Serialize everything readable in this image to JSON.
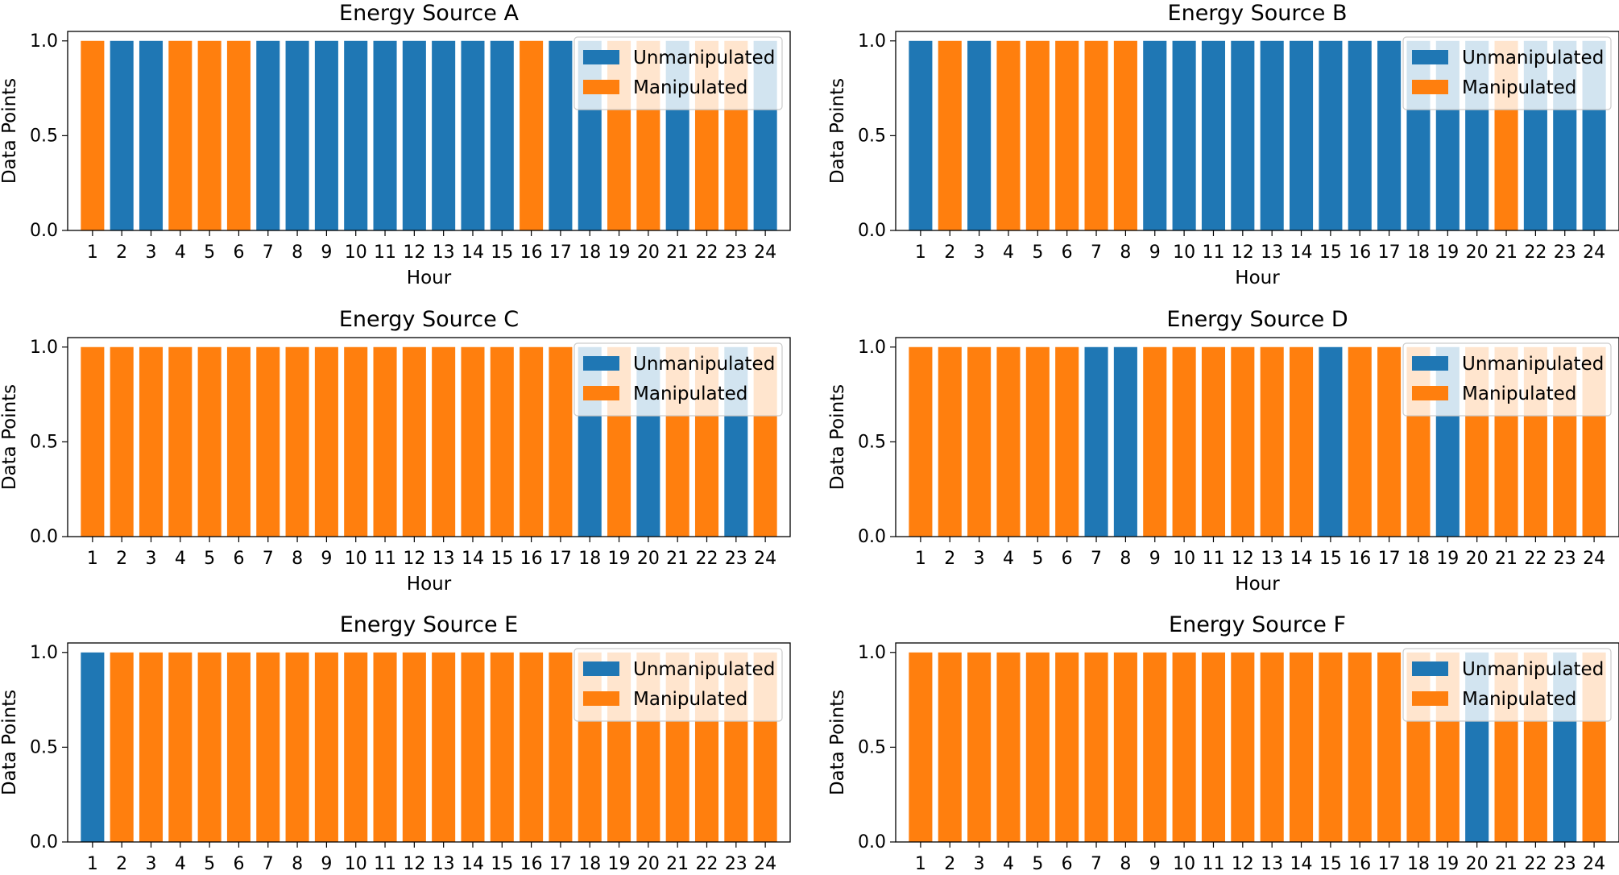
{
  "figure": {
    "colors": {
      "unmanipulated": "#1f77b4",
      "manipulated": "#ff7f0e"
    }
  },
  "chart_data": [
    {
      "type": "bar",
      "title": "Energy Source A",
      "xlabel": "Hour",
      "ylabel": "Data Points",
      "ylim": [
        0,
        1.05
      ],
      "yticks": [
        "0.0",
        "0.5",
        "1.0"
      ],
      "categories": [
        "1",
        "2",
        "3",
        "4",
        "5",
        "6",
        "7",
        "8",
        "9",
        "10",
        "11",
        "12",
        "13",
        "14",
        "15",
        "16",
        "17",
        "18",
        "19",
        "20",
        "21",
        "22",
        "23",
        "24"
      ],
      "values": [
        1,
        1,
        1,
        1,
        1,
        1,
        1,
        1,
        1,
        1,
        1,
        1,
        1,
        1,
        1,
        1,
        1,
        1,
        1,
        1,
        1,
        1,
        1,
        1
      ],
      "manipulated": [
        1,
        0,
        0,
        1,
        1,
        1,
        0,
        0,
        0,
        0,
        0,
        0,
        0,
        0,
        0,
        1,
        0,
        0,
        1,
        1,
        0,
        1,
        1,
        0
      ],
      "legend": {
        "position": "upper right",
        "entries": [
          "Unmanipulated",
          "Manipulated"
        ]
      }
    },
    {
      "type": "bar",
      "title": "Energy Source B",
      "xlabel": "Hour",
      "ylabel": "Data Points",
      "ylim": [
        0,
        1.05
      ],
      "yticks": [
        "0.0",
        "0.5",
        "1.0"
      ],
      "categories": [
        "1",
        "2",
        "3",
        "4",
        "5",
        "6",
        "7",
        "8",
        "9",
        "10",
        "11",
        "12",
        "13",
        "14",
        "15",
        "16",
        "17",
        "18",
        "19",
        "20",
        "21",
        "22",
        "23",
        "24"
      ],
      "values": [
        1,
        1,
        1,
        1,
        1,
        1,
        1,
        1,
        1,
        1,
        1,
        1,
        1,
        1,
        1,
        1,
        1,
        1,
        1,
        1,
        1,
        1,
        1,
        1
      ],
      "manipulated": [
        0,
        1,
        0,
        1,
        1,
        1,
        1,
        1,
        0,
        0,
        0,
        0,
        0,
        0,
        0,
        0,
        0,
        0,
        0,
        0,
        1,
        0,
        0,
        0
      ],
      "legend": {
        "position": "upper right",
        "entries": [
          "Unmanipulated",
          "Manipulated"
        ]
      }
    },
    {
      "type": "bar",
      "title": "Energy Source C",
      "xlabel": "Hour",
      "ylabel": "Data Points",
      "ylim": [
        0,
        1.05
      ],
      "yticks": [
        "0.0",
        "0.5",
        "1.0"
      ],
      "categories": [
        "1",
        "2",
        "3",
        "4",
        "5",
        "6",
        "7",
        "8",
        "9",
        "10",
        "11",
        "12",
        "13",
        "14",
        "15",
        "16",
        "17",
        "18",
        "19",
        "20",
        "21",
        "22",
        "23",
        "24"
      ],
      "values": [
        1,
        1,
        1,
        1,
        1,
        1,
        1,
        1,
        1,
        1,
        1,
        1,
        1,
        1,
        1,
        1,
        1,
        1,
        1,
        1,
        1,
        1,
        1,
        1
      ],
      "manipulated": [
        1,
        1,
        1,
        1,
        1,
        1,
        1,
        1,
        1,
        1,
        1,
        1,
        1,
        1,
        1,
        1,
        1,
        0,
        1,
        0,
        1,
        1,
        0,
        1
      ],
      "legend": {
        "position": "upper right",
        "entries": [
          "Unmanipulated",
          "Manipulated"
        ]
      }
    },
    {
      "type": "bar",
      "title": "Energy Source D",
      "xlabel": "Hour",
      "ylabel": "Data Points",
      "ylim": [
        0,
        1.05
      ],
      "yticks": [
        "0.0",
        "0.5",
        "1.0"
      ],
      "categories": [
        "1",
        "2",
        "3",
        "4",
        "5",
        "6",
        "7",
        "8",
        "9",
        "10",
        "11",
        "12",
        "13",
        "14",
        "15",
        "16",
        "17",
        "18",
        "19",
        "20",
        "21",
        "22",
        "23",
        "24"
      ],
      "values": [
        1,
        1,
        1,
        1,
        1,
        1,
        1,
        1,
        1,
        1,
        1,
        1,
        1,
        1,
        1,
        1,
        1,
        1,
        1,
        1,
        1,
        1,
        1,
        1
      ],
      "manipulated": [
        1,
        1,
        1,
        1,
        1,
        1,
        0,
        0,
        1,
        1,
        1,
        1,
        1,
        1,
        0,
        1,
        1,
        1,
        0,
        1,
        1,
        1,
        1,
        1
      ],
      "legend": {
        "position": "upper right",
        "entries": [
          "Unmanipulated",
          "Manipulated"
        ]
      }
    },
    {
      "type": "bar",
      "title": "Energy Source E",
      "xlabel": "",
      "ylabel": "Data Points",
      "ylim": [
        0,
        1.05
      ],
      "yticks": [
        "0.0",
        "0.5",
        "1.0"
      ],
      "categories": [
        "1",
        "2",
        "3",
        "4",
        "5",
        "6",
        "7",
        "8",
        "9",
        "10",
        "11",
        "12",
        "13",
        "14",
        "15",
        "16",
        "17",
        "18",
        "19",
        "20",
        "21",
        "22",
        "23",
        "24"
      ],
      "values": [
        1,
        1,
        1,
        1,
        1,
        1,
        1,
        1,
        1,
        1,
        1,
        1,
        1,
        1,
        1,
        1,
        1,
        1,
        1,
        1,
        1,
        1,
        1,
        1
      ],
      "manipulated": [
        0,
        1,
        1,
        1,
        1,
        1,
        1,
        1,
        1,
        1,
        1,
        1,
        1,
        1,
        1,
        1,
        1,
        1,
        1,
        1,
        1,
        1,
        1,
        1
      ],
      "legend": {
        "position": "upper right",
        "entries": [
          "Unmanipulated",
          "Manipulated"
        ]
      }
    },
    {
      "type": "bar",
      "title": "Energy Source F",
      "xlabel": "",
      "ylabel": "Data Points",
      "ylim": [
        0,
        1.05
      ],
      "yticks": [
        "0.0",
        "0.5",
        "1.0"
      ],
      "categories": [
        "1",
        "2",
        "3",
        "4",
        "5",
        "6",
        "7",
        "8",
        "9",
        "10",
        "11",
        "12",
        "13",
        "14",
        "15",
        "16",
        "17",
        "18",
        "19",
        "20",
        "21",
        "22",
        "23",
        "24"
      ],
      "values": [
        1,
        1,
        1,
        1,
        1,
        1,
        1,
        1,
        1,
        1,
        1,
        1,
        1,
        1,
        1,
        1,
        1,
        1,
        1,
        1,
        1,
        1,
        1,
        1
      ],
      "manipulated": [
        1,
        1,
        1,
        1,
        1,
        1,
        1,
        1,
        1,
        1,
        1,
        1,
        1,
        1,
        1,
        1,
        1,
        1,
        1,
        0,
        1,
        1,
        0,
        1
      ],
      "legend": {
        "position": "upper right",
        "entries": [
          "Unmanipulated",
          "Manipulated"
        ]
      }
    }
  ]
}
